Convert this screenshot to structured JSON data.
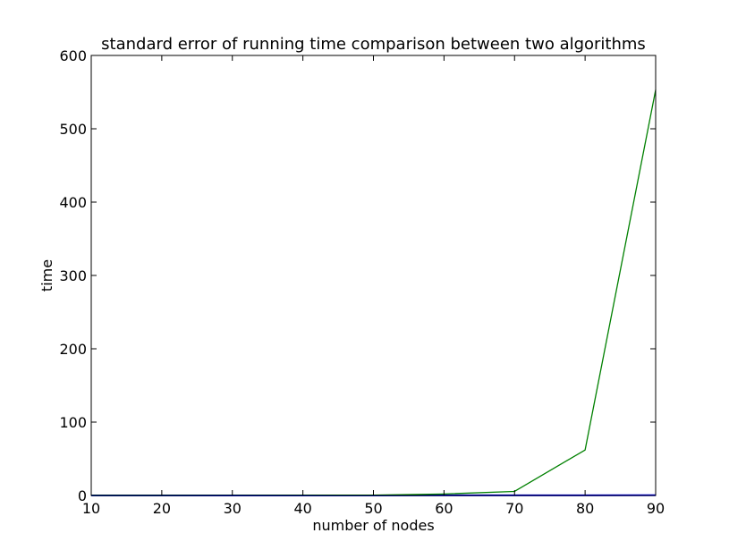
{
  "chart_data": {
    "type": "line",
    "title": "standard error of running time comparison between two algorithms",
    "xlabel": "number of nodes",
    "ylabel": "time",
    "xlim": [
      10,
      90
    ],
    "ylim": [
      0,
      600
    ],
    "xticks": [
      10,
      20,
      30,
      40,
      50,
      60,
      70,
      80,
      90
    ],
    "yticks": [
      0,
      100,
      200,
      300,
      400,
      500,
      600
    ],
    "grid": false,
    "x": [
      10,
      20,
      30,
      40,
      50,
      60,
      70,
      80,
      90
    ],
    "series": [
      {
        "color": "#0000ff",
        "values": [
          0.05,
          0.05,
          0.05,
          0.05,
          0.05,
          0.1,
          0.1,
          0.2,
          0.3
        ]
      },
      {
        "color": "#008000",
        "values": [
          0.1,
          0.1,
          0.2,
          0.3,
          0.5,
          2,
          5.5,
          62,
          553
        ]
      }
    ]
  }
}
